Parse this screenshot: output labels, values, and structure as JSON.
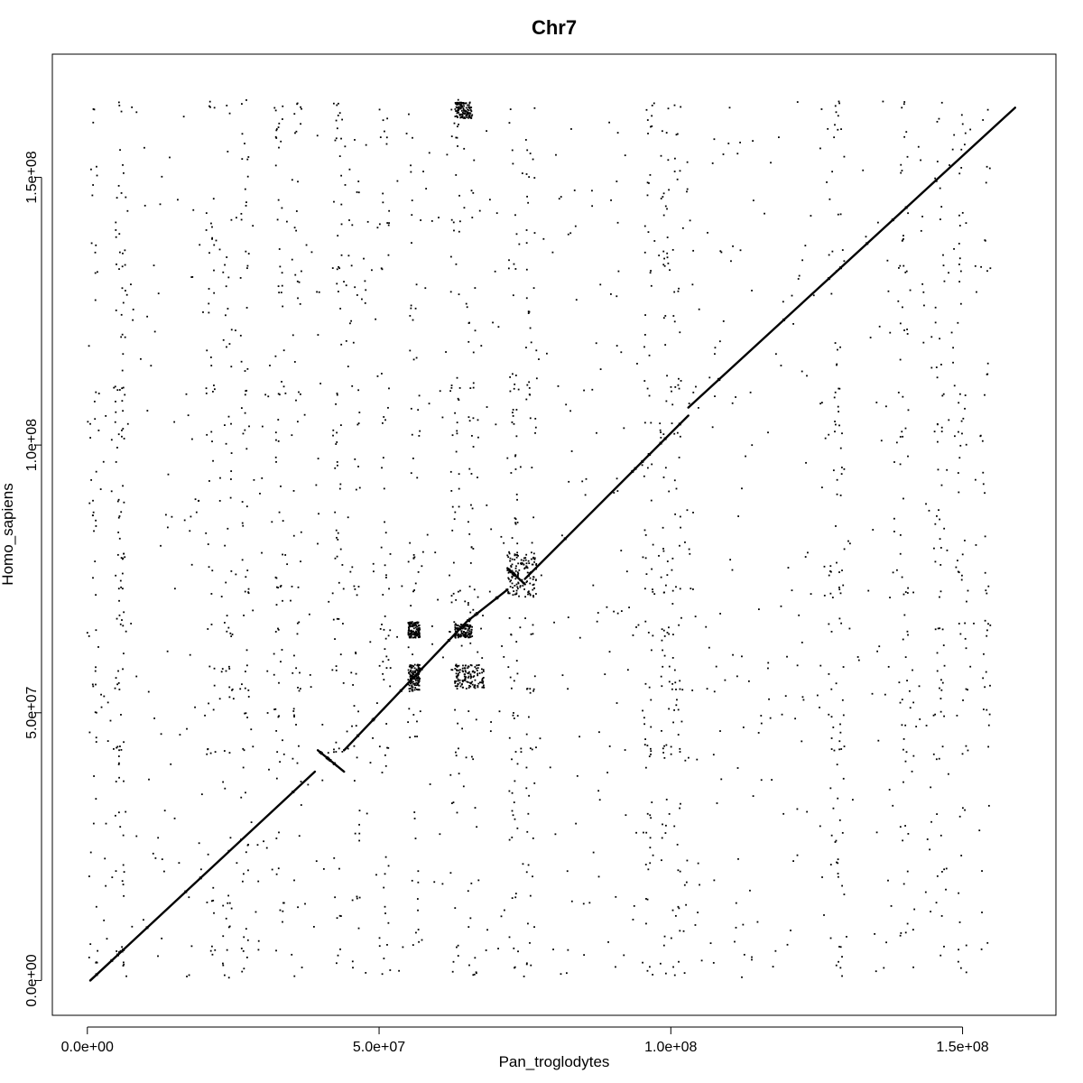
{
  "chart_data": {
    "type": "scatter",
    "title": "Chr7",
    "xlabel": "Pan_troglodytes",
    "ylabel": "Homo_sapiens",
    "xlim": [
      -6000000,
      166000000
    ],
    "ylim": [
      -6500000,
      173000000
    ],
    "x_ticks": [
      {
        "value": 0,
        "label": "0.0e+00"
      },
      {
        "value": 50000000,
        "label": "5.0e+07"
      },
      {
        "value": 100000000,
        "label": "1.0e+08"
      },
      {
        "value": 150000000,
        "label": "1.5e+08"
      }
    ],
    "y_ticks": [
      {
        "value": 0,
        "label": "0.0e+00"
      },
      {
        "value": 50000000,
        "label": "5.0e+07"
      },
      {
        "value": 100000000,
        "label": "1.0e+08"
      },
      {
        "value": 150000000,
        "label": "1.5e+08"
      }
    ],
    "grid": false,
    "legend": "none",
    "color": "#000000",
    "synteny_segments": [
      {
        "x": [
          500000,
          39000000
        ],
        "y": [
          0,
          39000000
        ]
      },
      {
        "x": [
          39500000,
          44000000
        ],
        "y": [
          43000000,
          39000000
        ]
      },
      {
        "x": [
          44000000,
          65000000
        ],
        "y": [
          43000000,
          67000000
        ]
      },
      {
        "x": [
          65000000,
          72000000
        ],
        "y": [
          67000000,
          73000000
        ]
      },
      {
        "x": [
          72000000,
          75000000
        ],
        "y": [
          77000000,
          74000000
        ]
      },
      {
        "x": [
          75000000,
          103000000
        ],
        "y": [
          75000000,
          105500000
        ]
      },
      {
        "x": [
          103000000,
          159000000
        ],
        "y": [
          107000000,
          163000000
        ]
      }
    ],
    "dense_blocks": [
      {
        "x": [
          63000000,
          66000000
        ],
        "y": [
          64000000,
          66500000
        ]
      },
      {
        "x": [
          63000000,
          68000000
        ],
        "y": [
          54500000,
          59000000
        ]
      },
      {
        "x": [
          55000000,
          57000000
        ],
        "y": [
          54000000,
          59000000
        ]
      },
      {
        "x": [
          55000000,
          57000000
        ],
        "y": [
          64000000,
          67000000
        ]
      },
      {
        "x": [
          63000000,
          66000000
        ],
        "y": [
          161000000,
          164000000
        ]
      },
      {
        "x": [
          72000000,
          77000000
        ],
        "y": [
          71500000,
          80000000
        ]
      }
    ],
    "scatter_columns_x": [
      1000000,
      5500000,
      6000000,
      21000000,
      24000000,
      27000000,
      33000000,
      36000000,
      43000000,
      46000000,
      51000000,
      56000000,
      63000000,
      66000000,
      73000000,
      76000000,
      96000000,
      99000000,
      101000000,
      128000000,
      129000000,
      140000000,
      146000000,
      150000000,
      154000000
    ],
    "scatter_rows_y": [
      3000000,
      6000000,
      43000000,
      50000000,
      55000000,
      58000000,
      65000000,
      67000000,
      73000000,
      76000000,
      79000000,
      102000000,
      104000000,
      110000000,
      133000000,
      163000000
    ]
  }
}
